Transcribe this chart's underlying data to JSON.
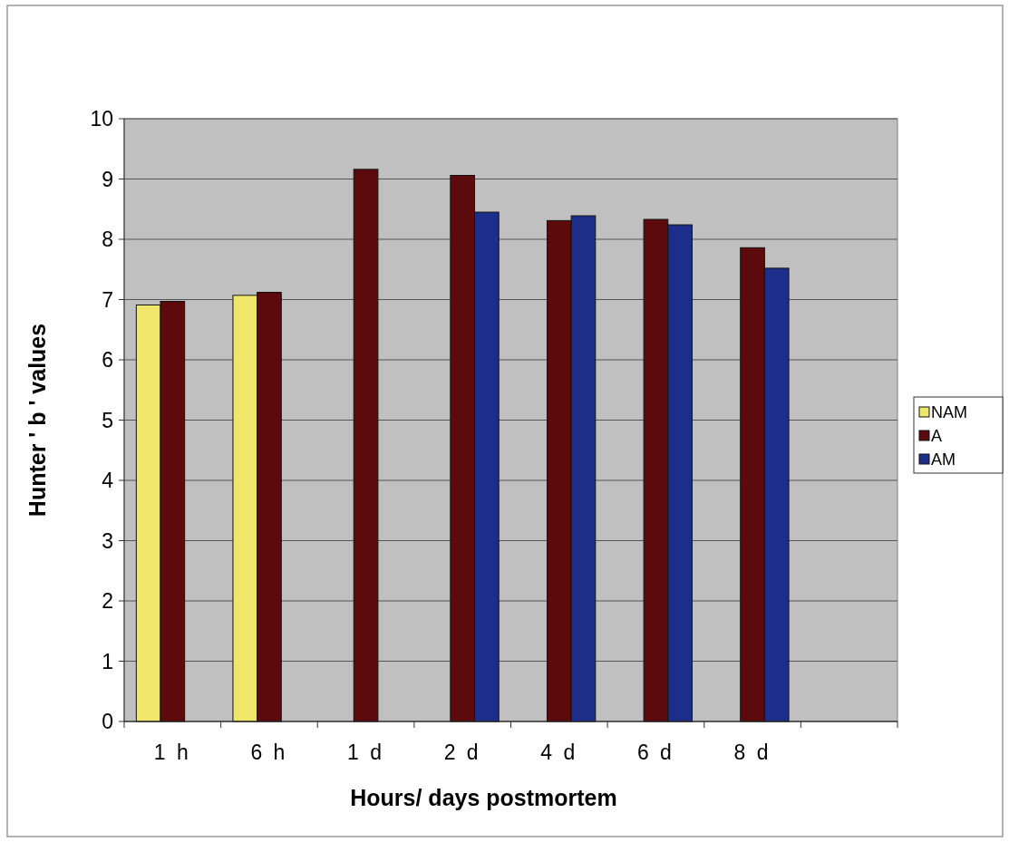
{
  "chart_data": {
    "type": "bar",
    "xlabel": "Hours/ days postmortem",
    "ylabel": "Hunter ' b ' values",
    "categories": [
      "1 h",
      "6 h",
      "1 d",
      "2 d",
      "4 d",
      "6 d",
      "8 d",
      null
    ],
    "series": [
      {
        "name": "NAM",
        "color": "#f0e66a",
        "values": [
          6.91,
          7.07,
          null,
          null,
          null,
          null,
          null,
          null
        ]
      },
      {
        "name": "A",
        "color": "#5c0a0c",
        "values": [
          6.97,
          7.12,
          9.16,
          9.06,
          8.31,
          8.33,
          7.86,
          null
        ]
      },
      {
        "name": "AM",
        "color": "#1c2e8a",
        "values": [
          null,
          null,
          null,
          8.45,
          8.39,
          8.24,
          7.52,
          null
        ]
      }
    ],
    "ylim": [
      0,
      10
    ],
    "yticks": [
      0,
      1,
      2,
      3,
      4,
      5,
      6,
      7,
      8,
      9,
      10
    ],
    "grid": "y",
    "legend": "right"
  }
}
